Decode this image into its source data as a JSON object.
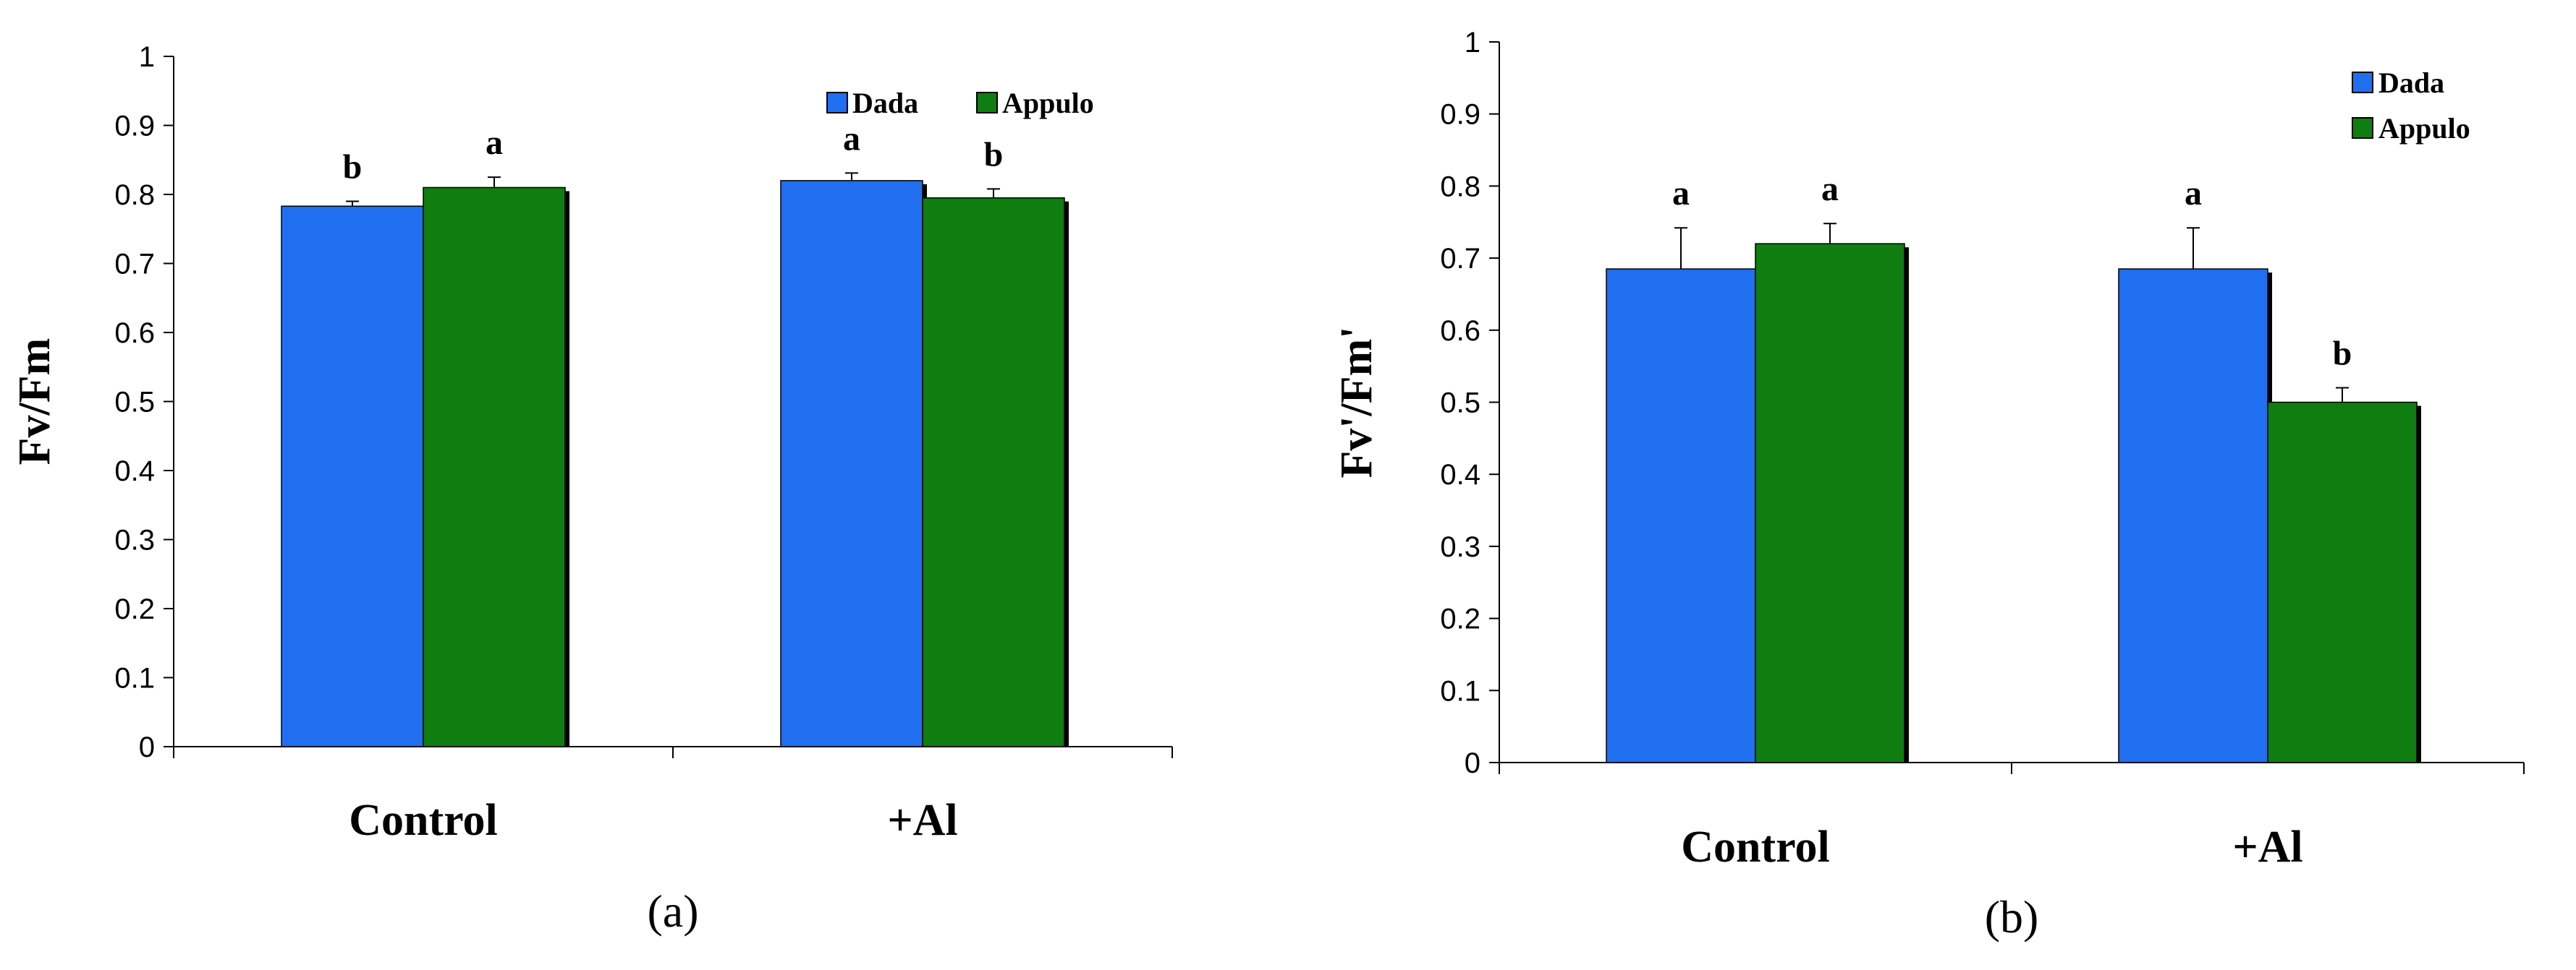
{
  "colors": {
    "Dada": "#1f6ff0",
    "Appulo": "#0f7d10"
  },
  "chart_data": [
    {
      "type": "bar",
      "panel_label": "a",
      "title": "",
      "xlabel": "",
      "ylabel": "Fv/Fm",
      "ylim": [
        0,
        1
      ],
      "yticks": [
        "0",
        "0.1",
        "0.2",
        "0.3",
        "0.4",
        "0.5",
        "0.6",
        "0.7",
        "0.8",
        "0.9",
        "1"
      ],
      "categories": [
        "Control",
        "+Al"
      ],
      "legend_position": "top-right",
      "series": [
        {
          "name": "Dada",
          "values": [
            0.783,
            0.82
          ],
          "errors": [
            0.007,
            0.011
          ],
          "letters": [
            "b",
            "a"
          ]
        },
        {
          "name": "Appulo",
          "values": [
            0.81,
            0.795
          ],
          "errors": [
            0.015,
            0.013
          ],
          "letters": [
            "a",
            "b"
          ]
        }
      ]
    },
    {
      "type": "bar",
      "panel_label": "b",
      "title": "",
      "xlabel": "",
      "ylabel": "Fv'/Fm'",
      "ylim": [
        0,
        1
      ],
      "yticks": [
        "0",
        "0.1",
        "0.2",
        "0.3",
        "0.4",
        "0.5",
        "0.6",
        "0.7",
        "0.8",
        "0.9",
        "1"
      ],
      "categories": [
        "Control",
        "+Al"
      ],
      "legend_position": "top-right",
      "series": [
        {
          "name": "Dada",
          "values": [
            0.685,
            0.685
          ],
          "errors": [
            0.057,
            0.057
          ],
          "letters": [
            "a",
            "a"
          ]
        },
        {
          "name": "Appulo",
          "values": [
            0.72,
            0.5
          ],
          "errors": [
            0.028,
            0.02
          ],
          "letters": [
            "a",
            "b"
          ]
        }
      ]
    }
  ]
}
